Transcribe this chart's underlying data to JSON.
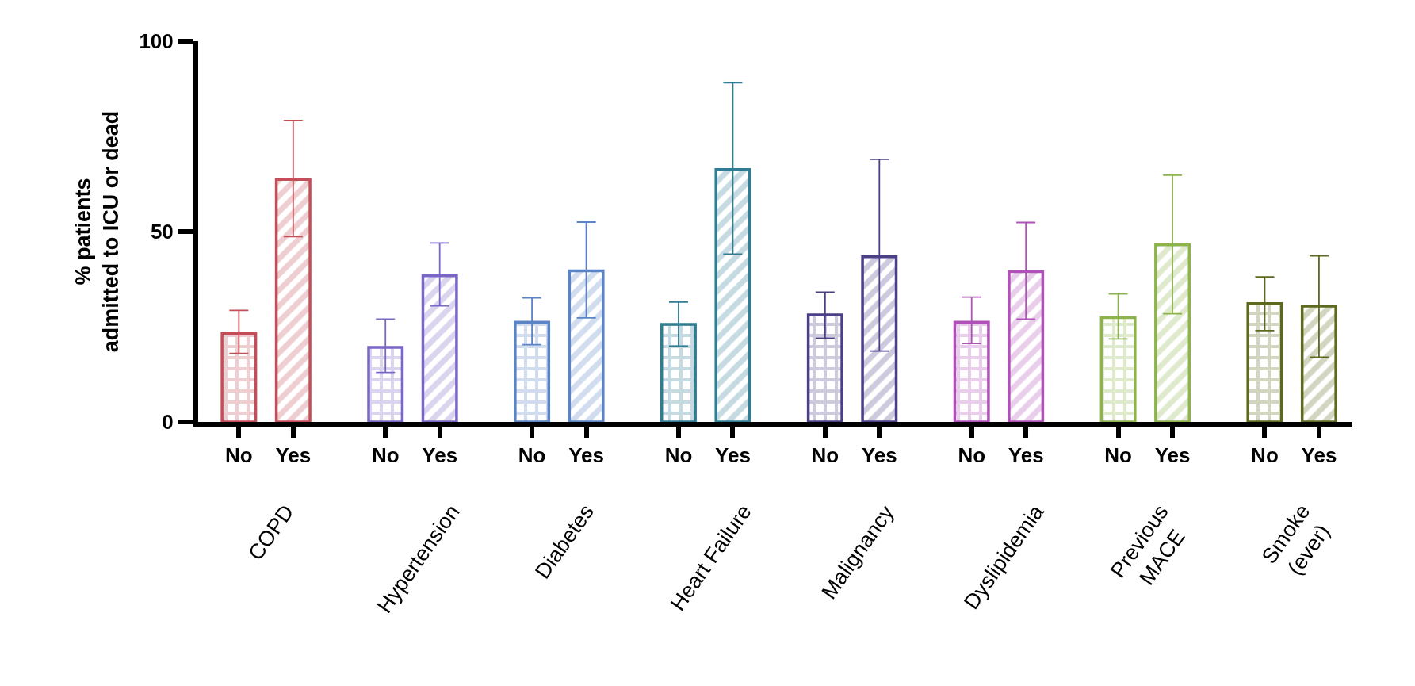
{
  "chart_data": {
    "type": "bar",
    "ylabel": "% patients\nadmitted to ICU or dead",
    "categories": [
      "No",
      "Yes",
      "No",
      "Yes",
      "No",
      "Yes",
      "No",
      "Yes",
      "No",
      "Yes",
      "No",
      "Yes",
      "No",
      "Yes",
      "No",
      "Yes"
    ],
    "values": [
      23.3,
      63.7,
      19.6,
      38.4,
      26.2,
      39.7,
      25.6,
      66.3,
      28.1,
      43.4,
      26.2,
      39.5,
      27.4,
      46.5,
      31.1,
      30.4
    ],
    "errors": [
      [
        18.0,
        29.3
      ],
      [
        48.7,
        79.2
      ],
      [
        13.0,
        27.0
      ],
      [
        30.5,
        47.0
      ],
      [
        20.3,
        32.6
      ],
      [
        27.3,
        52.5
      ],
      [
        19.9,
        31.5
      ],
      [
        44.1,
        89.1
      ],
      [
        22.0,
        34.1
      ],
      [
        18.6,
        69.0
      ],
      [
        20.6,
        32.8
      ],
      [
        27.0,
        52.4
      ],
      [
        21.8,
        33.6
      ],
      [
        28.4,
        64.8
      ],
      [
        24.0,
        38.1
      ],
      [
        17.0,
        43.6
      ]
    ],
    "colors": [
      "#c44e58",
      "#c44e58",
      "#7a66c6",
      "#7a66c6",
      "#5a84c6",
      "#5a84c6",
      "#2f7d94",
      "#2f7d94",
      "#4b3f86",
      "#4b3f86",
      "#b050b8",
      "#b050b8",
      "#8db44c",
      "#8db44c",
      "#5c6a20",
      "#5c6a20"
    ],
    "ylim": [
      0,
      100
    ],
    "yticks": [
      0,
      50,
      100
    ],
    "annotations": [
      "COPD",
      "Hypertension",
      "Diabetes",
      "Heart Failure",
      "Malignancy",
      "Dyslipidemia",
      "Previous\nMACE",
      "Smoke\n(ever)"
    ]
  }
}
